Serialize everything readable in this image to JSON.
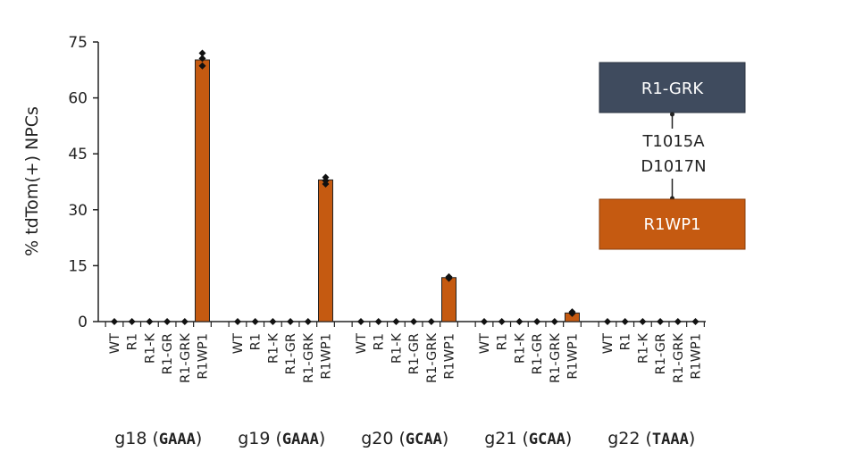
{
  "chart_data": {
    "type": "bar",
    "ylabel": "% tdTom(+) NPCs",
    "ylim": [
      0,
      75
    ],
    "yticks": [
      0,
      15,
      30,
      45,
      60,
      75
    ],
    "categories": [
      "WT",
      "R1",
      "R1-K",
      "R1-GR",
      "R1-GRK",
      "R1WP1"
    ],
    "bar_color": "#c55a11",
    "groups": [
      {
        "name": "g18",
        "seq": "GAAA",
        "values": [
          0,
          0,
          0,
          0,
          0,
          70.2
        ],
        "points": [
          [
            0
          ],
          [
            0
          ],
          [
            0
          ],
          [
            0
          ],
          [
            0
          ],
          [
            72.0,
            70.6,
            68.6
          ]
        ]
      },
      {
        "name": "g19",
        "seq": "GAAA",
        "values": [
          0,
          0,
          0,
          0,
          0,
          38.0
        ],
        "points": [
          [
            0
          ],
          [
            0
          ],
          [
            0
          ],
          [
            0
          ],
          [
            0
          ],
          [
            38.7,
            37.8,
            36.9
          ]
        ]
      },
      {
        "name": "g20",
        "seq": "GCAA",
        "values": [
          0,
          0,
          0,
          0,
          0,
          11.8
        ],
        "points": [
          [
            0
          ],
          [
            0
          ],
          [
            0
          ],
          [
            0
          ],
          [
            0
          ],
          [
            12.0,
            11.6
          ]
        ]
      },
      {
        "name": "g21",
        "seq": "GCAA",
        "values": [
          0,
          0,
          0,
          0,
          0,
          2.3
        ],
        "points": [
          [
            0
          ],
          [
            0
          ],
          [
            0
          ],
          [
            0
          ],
          [
            0
          ],
          [
            2.6,
            2.2
          ]
        ]
      },
      {
        "name": "g22",
        "seq": "TAAA",
        "values": [
          0,
          0,
          0,
          0,
          0,
          0
        ],
        "points": [
          [
            0
          ],
          [
            0
          ],
          [
            0
          ],
          [
            0
          ],
          [
            0
          ],
          [
            0
          ]
        ]
      }
    ]
  },
  "legend": {
    "top_box": {
      "label": "R1-GRK",
      "color": "#3f4b5e"
    },
    "mutations": [
      "T1015A",
      "D1017N"
    ],
    "bottom_box": {
      "label": "R1WP1",
      "color": "#c55a11"
    }
  }
}
